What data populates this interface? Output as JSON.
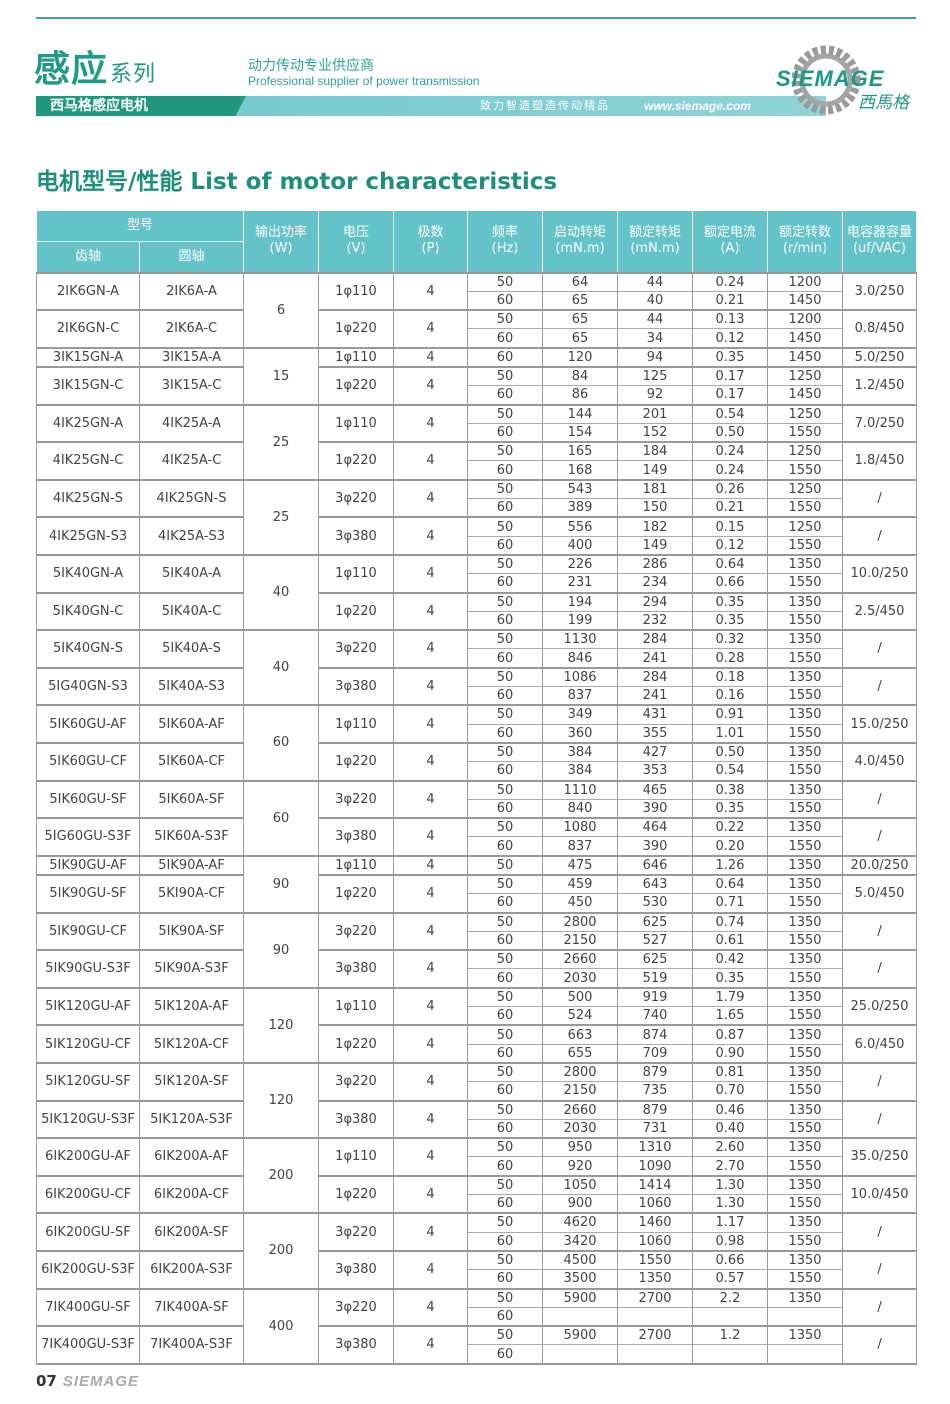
{
  "header": {
    "series_title": "感应",
    "series_suffix": "系列",
    "slogan_cn": "动力传动专业供应商",
    "slogan_en": "Professional supplier of power transmission",
    "band_label": "西马格感应电机",
    "band_text": "致力智造塑造传动精品",
    "website": "www.siemage.com",
    "logo_word": "SIEMAGE",
    "logo_cn": "西馬格"
  },
  "heading": "电机型号/性能 List of motor characteristics",
  "table": {
    "headers": {
      "model": "型号",
      "gear": "齿轴",
      "round": "圆轴",
      "power": "输出功率\n(W)",
      "voltage": "电压\n(V)",
      "poles": "极数\n(P)",
      "freq": "频率\n(Hz)",
      "start_torque": "启动转矩\n(mN.m)",
      "rated_torque": "额定转矩\n(mN.m)",
      "current": "额定电流\n(A)",
      "speed": "额定转数\n(r/min)",
      "capacitor": "电容器容量\n(uf/VAC)"
    },
    "groups": [
      {
        "power": "6",
        "models": [
          {
            "gear": "2IK6GN-A",
            "round": "2IK6A-A",
            "voltage": "1φ110",
            "poles": "4",
            "capacitor": "3.0/250",
            "rows": [
              [
                "50",
                "64",
                "44",
                "0.24",
                "1200"
              ],
              [
                "60",
                "65",
                "40",
                "0.21",
                "1450"
              ]
            ]
          },
          {
            "gear": "2IK6GN-C",
            "round": "2IK6A-C",
            "voltage": "1φ220",
            "poles": "4",
            "capacitor": "0.8/450",
            "rows": [
              [
                "50",
                "65",
                "44",
                "0.13",
                "1200"
              ],
              [
                "60",
                "65",
                "34",
                "0.12",
                "1450"
              ]
            ]
          }
        ]
      },
      {
        "power": "15",
        "models": [
          {
            "gear": "3IK15GN-A",
            "round": "3IK15A-A",
            "voltage": "1φ110",
            "poles": "4",
            "capacitor": "5.0/250",
            "rows": [
              [
                "60",
                "120",
                "94",
                "0.35",
                "1450"
              ]
            ]
          },
          {
            "gear": "3IK15GN-C",
            "round": "3IK15A-C",
            "voltage": "1φ220",
            "poles": "4",
            "capacitor": "1.2/450",
            "rows": [
              [
                "50",
                "84",
                "125",
                "0.17",
                "1250"
              ],
              [
                "60",
                "86",
                "92",
                "0.17",
                "1450"
              ]
            ]
          }
        ]
      },
      {
        "power": "25",
        "models": [
          {
            "gear": "4IK25GN-A",
            "round": "4IK25A-A",
            "voltage": "1φ110",
            "poles": "4",
            "capacitor": "7.0/250",
            "rows": [
              [
                "50",
                "144",
                "201",
                "0.54",
                "1250"
              ],
              [
                "60",
                "154",
                "152",
                "0.50",
                "1550"
              ]
            ]
          },
          {
            "gear": "4IK25GN-C",
            "round": "4IK25A-C",
            "voltage": "1φ220",
            "poles": "4",
            "capacitor": "1.8/450",
            "rows": [
              [
                "50",
                "165",
                "184",
                "0.24",
                "1250"
              ],
              [
                "60",
                "168",
                "149",
                "0.24",
                "1550"
              ]
            ]
          }
        ]
      },
      {
        "power": "25",
        "models": [
          {
            "gear": "4IK25GN-S",
            "round": "4IK25GN-S",
            "voltage": "3φ220",
            "poles": "4",
            "capacitor": "/",
            "rows": [
              [
                "50",
                "543",
                "181",
                "0.26",
                "1250"
              ],
              [
                "60",
                "389",
                "150",
                "0.21",
                "1550"
              ]
            ]
          },
          {
            "gear": "4IK25GN-S3",
            "round": "4IK25A-S3",
            "voltage": "3φ380",
            "poles": "4",
            "capacitor": "/",
            "rows": [
              [
                "50",
                "556",
                "182",
                "0.15",
                "1250"
              ],
              [
                "60",
                "400",
                "149",
                "0.12",
                "1550"
              ]
            ]
          }
        ]
      },
      {
        "power": "40",
        "models": [
          {
            "gear": "5IK40GN-A",
            "round": "5IK40A-A",
            "voltage": "1φ110",
            "poles": "4",
            "capacitor": "10.0/250",
            "rows": [
              [
                "50",
                "226",
                "286",
                "0.64",
                "1350"
              ],
              [
                "60",
                "231",
                "234",
                "0.66",
                "1550"
              ]
            ]
          },
          {
            "gear": "5IK40GN-C",
            "round": "5IK40A-C",
            "voltage": "1φ220",
            "poles": "4",
            "capacitor": "2.5/450",
            "rows": [
              [
                "50",
                "194",
                "294",
                "0.35",
                "1350"
              ],
              [
                "60",
                "199",
                "232",
                "0.35",
                "1550"
              ]
            ]
          }
        ]
      },
      {
        "power": "40",
        "models": [
          {
            "gear": "5IK40GN-S",
            "round": "5IK40A-S",
            "voltage": "3φ220",
            "poles": "4",
            "capacitor": "/",
            "rows": [
              [
                "50",
                "1130",
                "284",
                "0.32",
                "1350"
              ],
              [
                "60",
                "846",
                "241",
                "0.28",
                "1550"
              ]
            ]
          },
          {
            "gear": "5IG40GN-S3",
            "round": "5IK40A-S3",
            "voltage": "3φ380",
            "poles": "4",
            "capacitor": "/",
            "rows": [
              [
                "50",
                "1086",
                "284",
                "0.18",
                "1350"
              ],
              [
                "60",
                "837",
                "241",
                "0.16",
                "1550"
              ]
            ]
          }
        ]
      },
      {
        "power": "60",
        "models": [
          {
            "gear": "5IK60GU-AF",
            "round": "5IK60A-AF",
            "voltage": "1φ110",
            "poles": "4",
            "capacitor": "15.0/250",
            "rows": [
              [
                "50",
                "349",
                "431",
                "0.91",
                "1350"
              ],
              [
                "60",
                "360",
                "355",
                "1.01",
                "1550"
              ]
            ]
          },
          {
            "gear": "5IK60GU-CF",
            "round": "5IK60A-CF",
            "voltage": "1φ220",
            "poles": "4",
            "capacitor": "4.0/450",
            "rows": [
              [
                "50",
                "384",
                "427",
                "0.50",
                "1350"
              ],
              [
                "60",
                "384",
                "353",
                "0.54",
                "1550"
              ]
            ]
          }
        ]
      },
      {
        "power": "60",
        "models": [
          {
            "gear": "5IK60GU-SF",
            "round": "5IK60A-SF",
            "voltage": "3φ220",
            "poles": "4",
            "capacitor": "/",
            "rows": [
              [
                "50",
                "1110",
                "465",
                "0.38",
                "1350"
              ],
              [
                "60",
                "840",
                "390",
                "0.35",
                "1550"
              ]
            ]
          },
          {
            "gear": "5IG60GU-S3F",
            "round": "5IK60A-S3F",
            "voltage": "3φ380",
            "poles": "4",
            "capacitor": "/",
            "rows": [
              [
                "50",
                "1080",
                "464",
                "0.22",
                "1350"
              ],
              [
                "60",
                "837",
                "390",
                "0.20",
                "1550"
              ]
            ]
          }
        ]
      },
      {
        "power": "90",
        "models": [
          {
            "gear": "5IK90GU-AF",
            "round": "5IK90A-AF",
            "voltage": "1φ110",
            "poles": "4",
            "capacitor": "20.0/250",
            "rows": [
              [
                "50",
                "475",
                "646",
                "1.26",
                "1350"
              ]
            ]
          },
          {
            "gear": "5IK90GU-SF",
            "round": "5KI90A-CF",
            "voltage": "1φ220",
            "poles": "4",
            "capacitor": "5.0/450",
            "rows": [
              [
                "50",
                "459",
                "643",
                "0.64",
                "1350"
              ],
              [
                "60",
                "450",
                "530",
                "0.71",
                "1550"
              ]
            ]
          }
        ]
      },
      {
        "power": "90",
        "models": [
          {
            "gear": "5IK90GU-CF",
            "round": "5IK90A-SF",
            "voltage": "3φ220",
            "poles": "4",
            "capacitor": "/",
            "rows": [
              [
                "50",
                "2800",
                "625",
                "0.74",
                "1350"
              ],
              [
                "60",
                "2150",
                "527",
                "0.61",
                "1550"
              ]
            ]
          },
          {
            "gear": "5IK90GU-S3F",
            "round": "5IK90A-S3F",
            "voltage": "3φ380",
            "poles": "4",
            "capacitor": "/",
            "rows": [
              [
                "50",
                "2660",
                "625",
                "0.42",
                "1350"
              ],
              [
                "60",
                "2030",
                "519",
                "0.35",
                "1550"
              ]
            ]
          }
        ]
      },
      {
        "power": "120",
        "models": [
          {
            "gear": "5IK120GU-AF",
            "round": "5IK120A-AF",
            "voltage": "1φ110",
            "poles": "4",
            "capacitor": "25.0/250",
            "rows": [
              [
                "50",
                "500",
                "919",
                "1.79",
                "1350"
              ],
              [
                "60",
                "524",
                "740",
                "1.65",
                "1550"
              ]
            ]
          },
          {
            "gear": "5IK120GU-CF",
            "round": "5IK120A-CF",
            "voltage": "1φ220",
            "poles": "4",
            "capacitor": "6.0/450",
            "rows": [
              [
                "50",
                "663",
                "874",
                "0.87",
                "1350"
              ],
              [
                "60",
                "655",
                "709",
                "0.90",
                "1550"
              ]
            ]
          }
        ]
      },
      {
        "power": "120",
        "models": [
          {
            "gear": "5IK120GU-SF",
            "round": "5IK120A-SF",
            "voltage": "3φ220",
            "poles": "4",
            "capacitor": "/",
            "rows": [
              [
                "50",
                "2800",
                "879",
                "0.81",
                "1350"
              ],
              [
                "60",
                "2150",
                "735",
                "0.70",
                "1550"
              ]
            ]
          },
          {
            "gear": "5IK120GU-S3F",
            "round": "5IK120A-S3F",
            "voltage": "3φ380",
            "poles": "4",
            "capacitor": "/",
            "rows": [
              [
                "50",
                "2660",
                "879",
                "0.46",
                "1350"
              ],
              [
                "60",
                "2030",
                "731",
                "0.40",
                "1550"
              ]
            ]
          }
        ]
      },
      {
        "power": "200",
        "models": [
          {
            "gear": "6IK200GU-AF",
            "round": "6IK200A-AF",
            "voltage": "1φ110",
            "poles": "4",
            "capacitor": "35.0/250",
            "rows": [
              [
                "50",
                "950",
                "1310",
                "2.60",
                "1350"
              ],
              [
                "60",
                "920",
                "1090",
                "2.70",
                "1550"
              ]
            ]
          },
          {
            "gear": "6IK200GU-CF",
            "round": "6IK200A-CF",
            "voltage": "1φ220",
            "poles": "4",
            "capacitor": "10.0/450",
            "rows": [
              [
                "50",
                "1050",
                "1414",
                "1.30",
                "1350"
              ],
              [
                "60",
                "900",
                "1060",
                "1.30",
                "1550"
              ]
            ]
          }
        ]
      },
      {
        "power": "200",
        "models": [
          {
            "gear": "6IK200GU-SF",
            "round": "6IK200A-SF",
            "voltage": "3φ220",
            "poles": "4",
            "capacitor": "/",
            "rows": [
              [
                "50",
                "4620",
                "1460",
                "1.17",
                "1350"
              ],
              [
                "60",
                "3420",
                "1060",
                "0.98",
                "1550"
              ]
            ]
          },
          {
            "gear": "6IK200GU-S3F",
            "round": "6IK200A-S3F",
            "voltage": "3φ380",
            "poles": "4",
            "capacitor": "/",
            "rows": [
              [
                "50",
                "4500",
                "1550",
                "0.66",
                "1350"
              ],
              [
                "60",
                "3500",
                "1350",
                "0.57",
                "1550"
              ]
            ]
          }
        ]
      },
      {
        "power": "400",
        "models": [
          {
            "gear": "7IK400GU-SF",
            "round": "7IK400A-SF",
            "voltage": "3φ220",
            "poles": "4",
            "capacitor": "/",
            "rows": [
              [
                "50",
                "5900",
                "2700",
                "2.2",
                "1350"
              ],
              [
                "60",
                "",
                "",
                "",
                ""
              ]
            ]
          },
          {
            "gear": "7IK400GU-S3F",
            "round": "7IK400A-S3F",
            "voltage": "3φ380",
            "poles": "4",
            "capacitor": "/",
            "rows": [
              [
                "50",
                "5900",
                "2700",
                "1.2",
                "1350"
              ],
              [
                "60",
                "",
                "",
                "",
                ""
              ]
            ]
          }
        ]
      }
    ]
  },
  "footer": {
    "page_number": "07",
    "brand": "SIEMAGE"
  },
  "colors": {
    "accent": "#1d8f7c",
    "header_bg": "#64c3c9"
  }
}
